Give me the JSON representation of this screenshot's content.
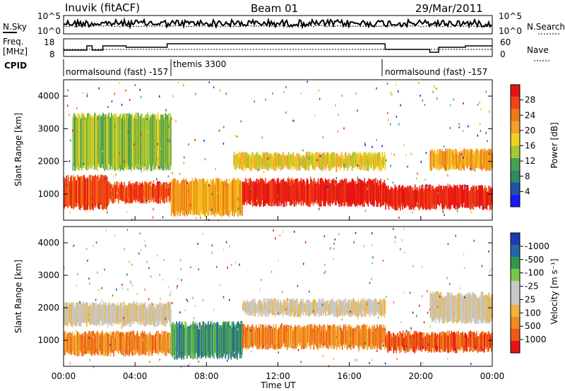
{
  "header": {
    "station": "Inuvik (fitACF)",
    "beam": "Beam 01",
    "date": "29/Mar/2011"
  },
  "noise_panel": {
    "left_label": "N.Sky",
    "left_ticks": [
      "10^5",
      "10^0"
    ],
    "right_ticks": [
      "10^5",
      "10^0"
    ],
    "right_label": "N.Search"
  },
  "freq_panel": {
    "left_label_1": "Freq.",
    "left_label_2": "[MHz]",
    "left_ticks": [
      "18",
      "8"
    ],
    "right_ticks": [
      "60",
      "0"
    ],
    "right_label": "Nave"
  },
  "cpid": {
    "label": "CPID",
    "segments": [
      {
        "name": "normalsound (fast) -157",
        "start_hour": 0
      },
      {
        "name": "themis 3300",
        "start_hour": 6.0
      },
      {
        "name": "normalsound (fast) -157",
        "start_hour": 18.0
      }
    ]
  },
  "colors": {
    "power_scale": [
      "#1a1aff",
      "#2050a8",
      "#2e8a62",
      "#4aa050",
      "#a8c832",
      "#f0d21e",
      "#f5a028",
      "#f07814",
      "#f04614",
      "#e61414"
    ],
    "velocity_scale": [
      "#e61414",
      "#f05a14",
      "#f08c1e",
      "#f0b43c",
      "#c8c8c8",
      "#c8c8c8",
      "#78c846",
      "#329650",
      "#2864a8",
      "#1e3cb4"
    ]
  },
  "chart_data": [
    {
      "type": "heatmap",
      "title": "",
      "xlabel": "Time UT",
      "ylabel": "Slant Range [km]",
      "x_ticks": [
        "00:00",
        "04:00",
        "08:00",
        "12:00",
        "16:00",
        "20:00",
        "00:00"
      ],
      "xlim_hours": [
        0,
        24
      ],
      "ylim": [
        200,
        4500
      ],
      "y_ticks": [
        "1000",
        "2000",
        "3000",
        "4000"
      ],
      "colorbar": {
        "label": "Power [dB]",
        "ticks": [
          "4",
          "8",
          "12",
          "16",
          "20",
          "24",
          "28"
        ],
        "range": [
          0,
          30
        ]
      },
      "bands": [
        {
          "start_hour": 0.0,
          "end_hour": 2.5,
          "min_km": 500,
          "max_km": 1600,
          "level": 8
        },
        {
          "start_hour": 2.5,
          "end_hour": 6.0,
          "min_km": 700,
          "max_km": 1400,
          "level": 8
        },
        {
          "start_hour": 6.0,
          "end_hour": 10.0,
          "min_km": 300,
          "max_km": 1500,
          "level": 6
        },
        {
          "start_hour": 10.0,
          "end_hour": 18.0,
          "min_km": 600,
          "max_km": 1500,
          "level": 9
        },
        {
          "start_hour": 18.0,
          "end_hour": 24.0,
          "min_km": 500,
          "max_km": 1300,
          "level": 9
        },
        {
          "start_hour": 0.5,
          "end_hour": 6.0,
          "min_km": 1700,
          "max_km": 3500,
          "level": 4
        },
        {
          "start_hour": 9.5,
          "end_hour": 18.0,
          "min_km": 1700,
          "max_km": 2300,
          "level": 5
        },
        {
          "start_hour": 20.5,
          "end_hour": 24.0,
          "min_km": 1700,
          "max_km": 2400,
          "level": 6
        }
      ]
    },
    {
      "type": "heatmap",
      "title": "",
      "xlabel": "Time UT",
      "ylabel": "Slant Range [km]",
      "x_ticks": [
        "00:00",
        "04:00",
        "08:00",
        "12:00",
        "16:00",
        "20:00",
        "00:00"
      ],
      "xlim_hours": [
        0,
        24
      ],
      "ylim": [
        200,
        4500
      ],
      "y_ticks": [
        "1000",
        "2000",
        "3000",
        "4000"
      ],
      "colorbar": {
        "label": "Velocity [m s⁻¹]",
        "ticks": [
          "1000",
          "500",
          "100",
          "25",
          "-25",
          "-100",
          "-500",
          "-1000"
        ],
        "range": [
          -1000,
          1000
        ]
      },
      "bands": [
        {
          "start_hour": 0.0,
          "end_hour": 6.0,
          "min_km": 500,
          "max_km": 1300,
          "level": 2
        },
        {
          "start_hour": 0.0,
          "end_hour": 6.0,
          "min_km": 1400,
          "max_km": 2200,
          "level": 4
        },
        {
          "start_hour": 6.0,
          "end_hour": 10.0,
          "min_km": 400,
          "max_km": 1600,
          "level": 7
        },
        {
          "start_hour": 10.0,
          "end_hour": 18.0,
          "min_km": 700,
          "max_km": 1500,
          "level": 2
        },
        {
          "start_hour": 10.0,
          "end_hour": 18.0,
          "min_km": 1700,
          "max_km": 2300,
          "level": 4
        },
        {
          "start_hour": 18.0,
          "end_hour": 24.0,
          "min_km": 600,
          "max_km": 1300,
          "level": 1
        },
        {
          "start_hour": 20.5,
          "end_hour": 24.0,
          "min_km": 1500,
          "max_km": 2500,
          "level": 4
        }
      ]
    }
  ],
  "footer": {
    "xlabel": "Time UT"
  }
}
